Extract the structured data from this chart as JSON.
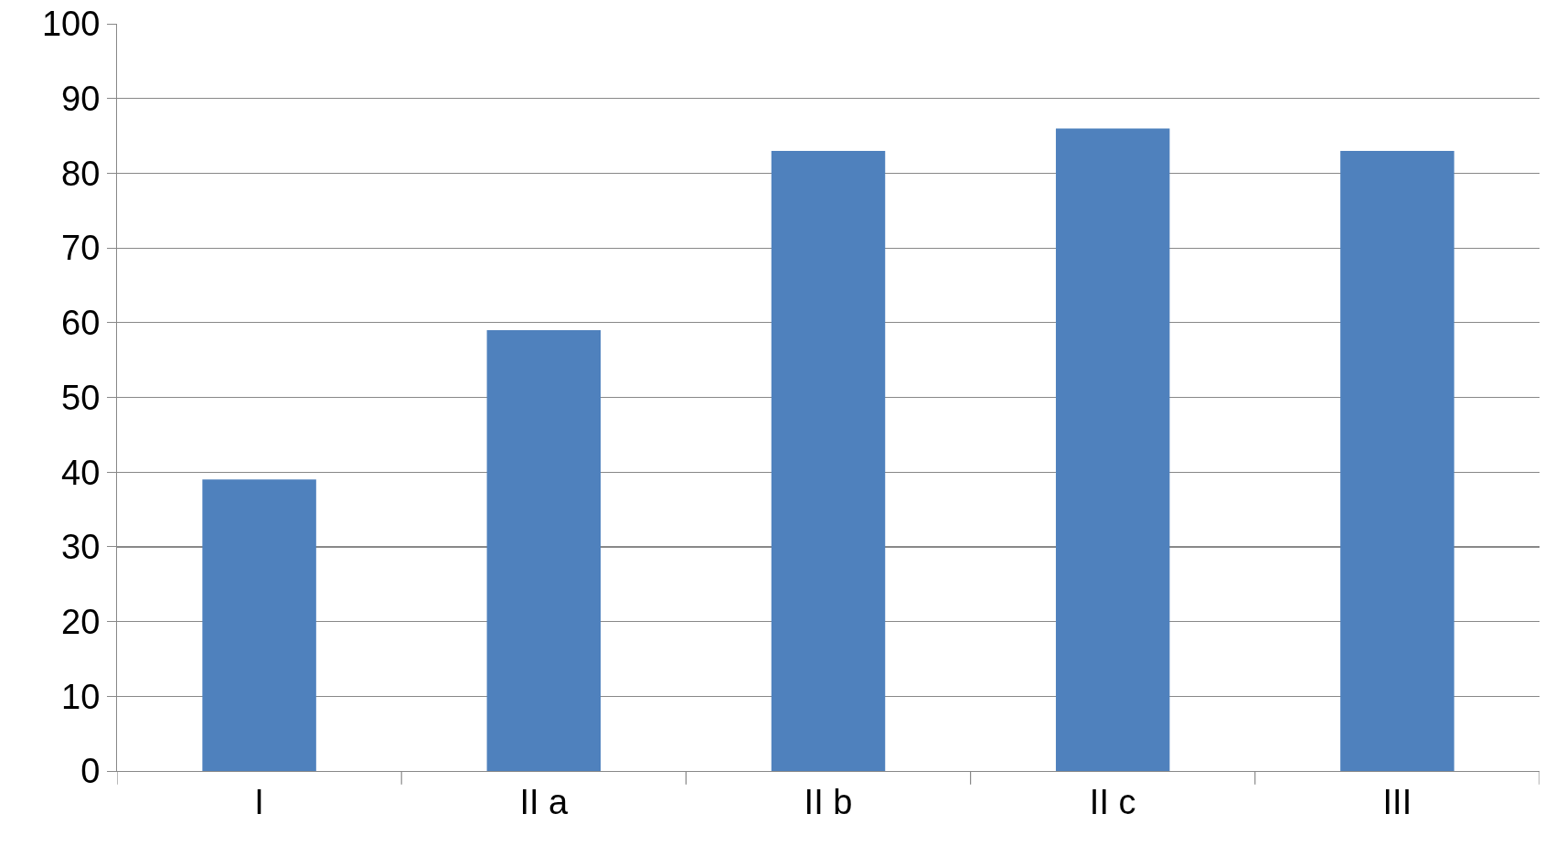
{
  "chart_data": {
    "type": "bar",
    "categories": [
      "I",
      "II a",
      "II b",
      "II c",
      "III"
    ],
    "values": [
      39,
      59,
      83,
      86,
      83
    ],
    "color": "#4f81bd",
    "ylim": [
      0,
      100
    ],
    "yticks": [
      0,
      10,
      20,
      30,
      40,
      50,
      60,
      70,
      80,
      90,
      100
    ],
    "grid": "y"
  }
}
